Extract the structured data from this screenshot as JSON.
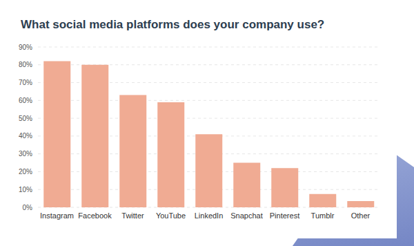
{
  "chart_data": {
    "type": "bar",
    "title": "What social media platforms does your company use?",
    "categories": [
      "Instagram",
      "Facebook",
      "Twitter",
      "YouTube",
      "LinkedIn",
      "Snapchat",
      "Pinterest",
      "Tumblr",
      "Other"
    ],
    "values": [
      82,
      80,
      63,
      59,
      41,
      25,
      22,
      7.5,
      3.5
    ],
    "color": "#f0ab93",
    "ylim": [
      0,
      90
    ],
    "yticks": [
      {
        "value": 0,
        "label": "0%"
      },
      {
        "value": 10,
        "label": "10%"
      },
      {
        "value": 20,
        "label": "20%"
      },
      {
        "value": 30,
        "label": "30%"
      },
      {
        "value": 40,
        "label": "40%"
      },
      {
        "value": 50,
        "label": "50%"
      },
      {
        "value": 60,
        "label": "60%"
      },
      {
        "value": 70,
        "label": "70%"
      },
      {
        "value": 80,
        "label": "80%"
      },
      {
        "value": 90,
        "label": "90%"
      }
    ],
    "grid": true
  }
}
